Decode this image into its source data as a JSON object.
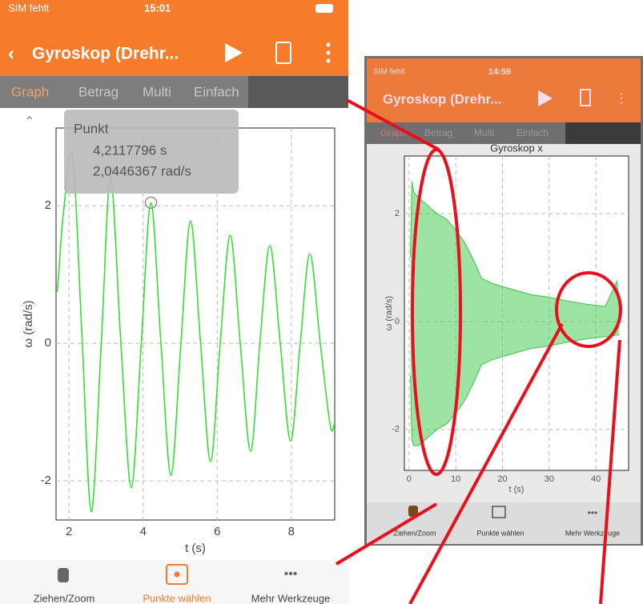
{
  "screens": [
    {
      "carrier": "SIM fehlt",
      "time": "15:01",
      "nav_title": "Gyroskop (Drehr...",
      "tabs": [
        "Graph",
        "Betrag",
        "Multi",
        "Einfach"
      ],
      "tools": [
        "Ziehen/Zoom",
        "Punkte wählen",
        "Mehr Werkzeuge"
      ]
    },
    {
      "carrier": "SIM fehlt",
      "time": "14:59",
      "nav_title": "Gyroskop (Drehr...",
      "tabs": [
        "Graph",
        "Betrag",
        "Multi",
        "Einfach"
      ],
      "tools": [
        "Ziehen/Zoom",
        "Punkte wählen",
        "Mehr Werkzeuge"
      ]
    }
  ],
  "chart_data": [
    {
      "type": "line",
      "x_label": "t (s)",
      "y_label": "ω (rad/s)",
      "color": "#33e033",
      "grid": true,
      "x": [
        1.68,
        1.72,
        1.85,
        2.1,
        2.35,
        2.6,
        2.87,
        3.12,
        3.4,
        3.68,
        3.95,
        4.21,
        4.48,
        4.75,
        5.02,
        5.28,
        5.55,
        5.82,
        6.08,
        6.35,
        6.62,
        6.9,
        7.15,
        7.42,
        7.7,
        7.98,
        8.24,
        8.5,
        8.78,
        9.05,
        9.17
      ],
      "y": [
        0.75,
        1.0,
        1.9,
        2.7,
        0.1,
        -2.45,
        0,
        2.4,
        0,
        -2.1,
        0,
        2.04,
        0,
        -1.92,
        0,
        1.78,
        0,
        -1.72,
        0,
        1.57,
        0,
        -1.57,
        0,
        1.42,
        0,
        -1.42,
        0,
        1.3,
        0,
        -1.2,
        -1.15
      ],
      "xlim": [
        1.65,
        9.17
      ],
      "ylim": [
        -2.57,
        3.13
      ],
      "xticks": [
        2,
        4,
        6,
        8
      ],
      "yticks": [
        -2,
        0,
        2
      ],
      "selected_point": {
        "title": "Punkt",
        "x": 4.2117796,
        "y": 2.0446367,
        "x_label": "4,2117796 s",
        "y_label": "2,0446367 rad/s"
      }
    },
    {
      "type": "envelope",
      "title": "Gyroskop x",
      "x_label": "t (s)",
      "y_label": "ω (rad/s)",
      "color": "#4ccc5a",
      "grid": true,
      "x": [
        0.3,
        0.6,
        1,
        2,
        4,
        6,
        8,
        10,
        12,
        14,
        15.5,
        18,
        22,
        26,
        30,
        34,
        38,
        42,
        44.5,
        45
      ],
      "y_max": [
        1.2,
        2.6,
        2.4,
        2.3,
        2.15,
        2.0,
        1.9,
        1.7,
        1.45,
        1.1,
        0.8,
        0.7,
        0.6,
        0.5,
        0.45,
        0.38,
        0.32,
        0.28,
        0.75,
        0.25
      ],
      "y_min": [
        -1.0,
        -2.2,
        -2.3,
        -2.3,
        -2.15,
        -2.0,
        -1.9,
        -1.7,
        -1.45,
        -1.1,
        -0.8,
        -0.7,
        -0.6,
        -0.5,
        -0.45,
        -0.38,
        -0.32,
        -0.28,
        -0.25,
        -0.25
      ],
      "xlim": [
        -1,
        47
      ],
      "ylim": [
        -2.76,
        3.07
      ],
      "xticks": [
        0,
        10,
        20,
        30,
        40
      ],
      "yticks": [
        -2,
        0,
        2
      ]
    }
  ]
}
